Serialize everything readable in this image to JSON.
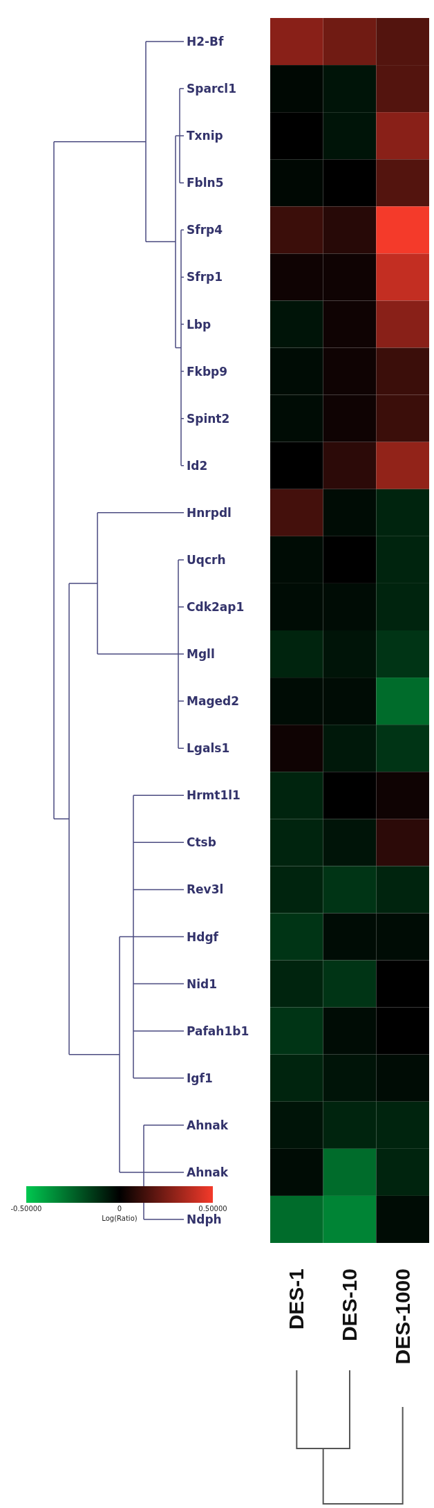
{
  "chart_data": {
    "type": "heatmap",
    "categories": [
      "DES-1",
      "DES-10",
      "DES-1000"
    ],
    "y_categories": [
      "H2-Bf",
      "Sparcl1",
      "Txnip",
      "Fbln5",
      "Sfrp4",
      "Sfrp1",
      "Lbp",
      "Fkbp9",
      "Spint2",
      "Id2",
      "Hnrpdl",
      "Uqcrh",
      "Cdk2ap1",
      "Mgll",
      "Maged2",
      "Lgals1",
      "Hrmt1l1",
      "Ctsb",
      "Rev3l",
      "Hdgf",
      "Nid1",
      "Pafah1b1",
      "Igf1",
      "Ahnak",
      "Ahnak",
      "Ndph"
    ],
    "cells": [
      [
        0.28,
        0.23,
        0.17
      ],
      [
        -0.02,
        -0.05,
        0.17
      ],
      [
        0.0,
        -0.05,
        0.28
      ],
      [
        -0.02,
        0.0,
        0.17
      ],
      [
        0.12,
        0.08,
        0.5
      ],
      [
        0.03,
        0.03,
        0.4
      ],
      [
        -0.05,
        0.03,
        0.28
      ],
      [
        -0.03,
        0.03,
        0.12
      ],
      [
        -0.03,
        0.03,
        0.12
      ],
      [
        0.0,
        0.09,
        0.3
      ],
      [
        0.14,
        -0.03,
        -0.09
      ],
      [
        -0.03,
        0.0,
        -0.09
      ],
      [
        -0.03,
        -0.03,
        -0.09
      ],
      [
        -0.09,
        -0.05,
        -0.13
      ],
      [
        -0.03,
        -0.03,
        -0.27
      ],
      [
        0.03,
        -0.06,
        -0.13
      ],
      [
        -0.09,
        0.0,
        0.03
      ],
      [
        -0.09,
        -0.05,
        0.09
      ],
      [
        -0.09,
        -0.13,
        -0.09
      ],
      [
        -0.13,
        -0.03,
        -0.03
      ],
      [
        -0.09,
        -0.13,
        0.0
      ],
      [
        -0.13,
        -0.03,
        0.0
      ],
      [
        -0.09,
        -0.05,
        -0.03
      ],
      [
        -0.05,
        -0.09,
        -0.09
      ],
      [
        -0.03,
        -0.27,
        -0.09
      ],
      [
        -0.27,
        -0.33,
        -0.03
      ]
    ],
    "clim": [
      -0.5,
      0.5
    ],
    "cticks": [
      {
        "value": -0.5,
        "label": "-0.50000"
      },
      {
        "value": 0,
        "label": "0"
      },
      {
        "value": 0.5,
        "label": "0.50000"
      }
    ],
    "clabel": "Log(Ratio)"
  }
}
